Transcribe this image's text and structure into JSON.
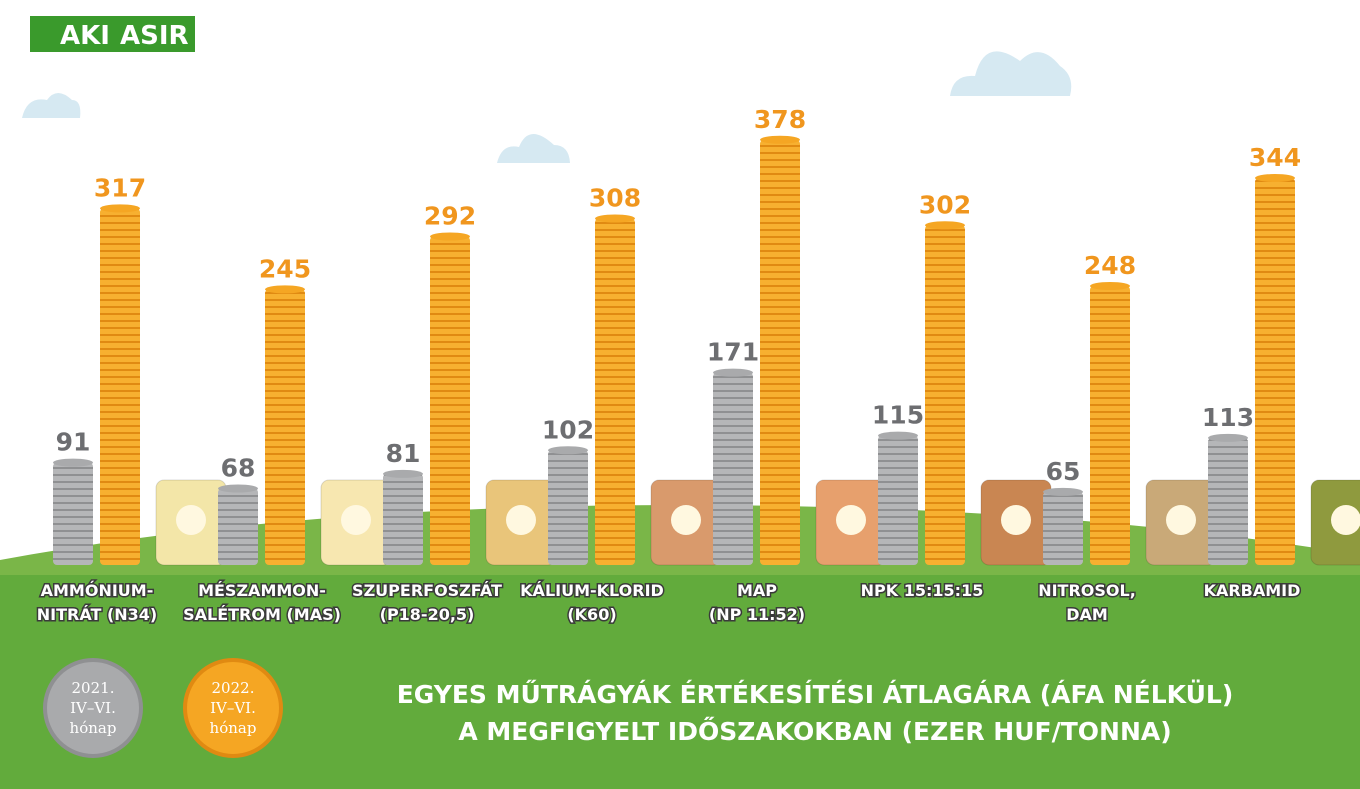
{
  "logo": [
    "AKI",
    "ASIR"
  ],
  "chart_data": {
    "type": "bar",
    "title": [
      "EGYES MŰTRÁGYÁK ÉRTÉKESÍTÉSI ÁTLAGÁRA (ÁFA NÉLKÜL)",
      "A MEGFIGYELT IDŐSZAKOKBAN (EZER HUF/TONNA)"
    ],
    "categories": [
      [
        "AMMÓNIUM-",
        "NITRÁT (N34)"
      ],
      [
        "MÉSZAMMON-",
        "SALÉTROM (MAS)"
      ],
      [
        "SZUPERFOSZFÁT",
        "(P18-20,5)"
      ],
      [
        "KÁLIUM-KLORID",
        "(K60)"
      ],
      [
        "MAP",
        "(NP 11:52)"
      ],
      [
        "NPK 15:15:15"
      ],
      [
        "NITROSOL,",
        "DAM"
      ],
      [
        "KARBAMID"
      ]
    ],
    "series": [
      {
        "name": [
          "2021.",
          "IV–VI.",
          "hónap"
        ],
        "color": "#a9aaac",
        "label_color": "#6d6e71",
        "values": [
          91,
          68,
          81,
          102,
          171,
          115,
          65,
          113
        ]
      },
      {
        "name": [
          "2022.",
          "IV–VI.",
          "hónap"
        ],
        "color": "#f5a623",
        "label_color": "#f0961e",
        "values": [
          317,
          245,
          292,
          308,
          378,
          302,
          248,
          344
        ]
      }
    ],
    "ylim": [
      0,
      400
    ]
  }
}
